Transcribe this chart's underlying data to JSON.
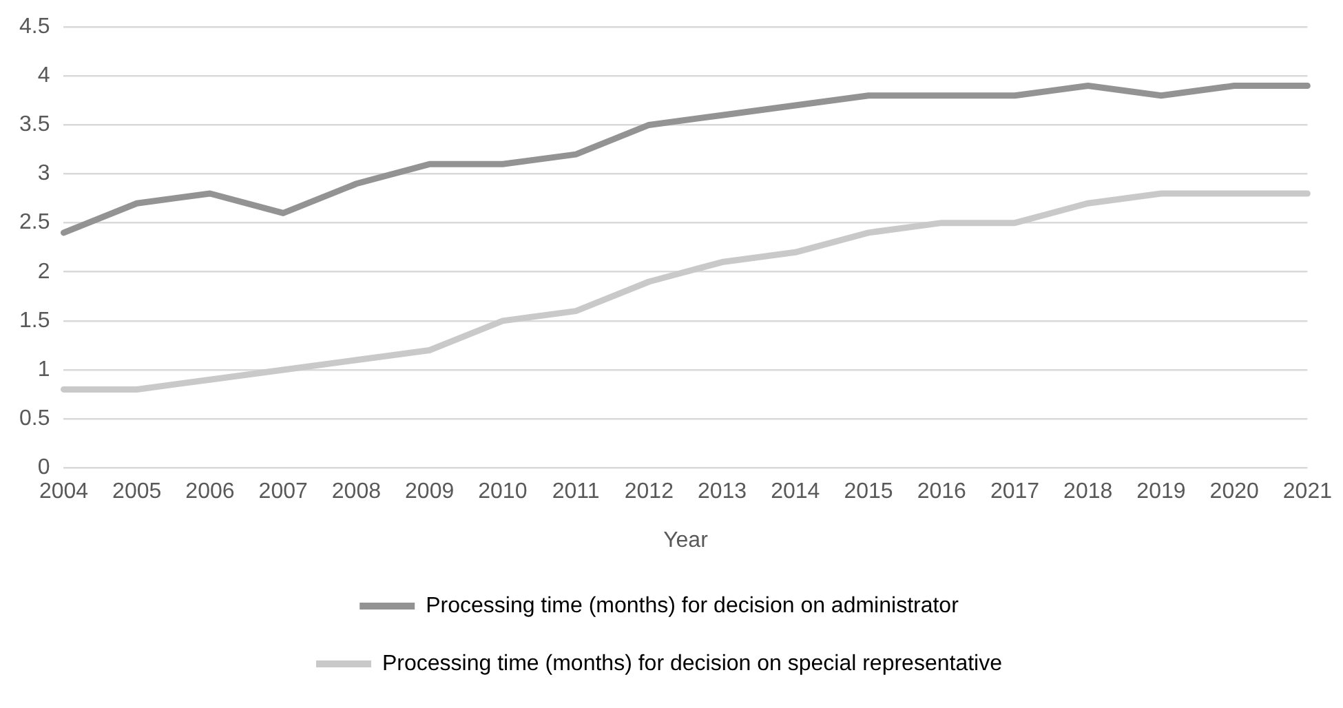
{
  "chart_data": {
    "type": "line",
    "xlabel": "Year",
    "categories": [
      "2004",
      "2005",
      "2006",
      "2007",
      "2008",
      "2009",
      "2010",
      "2011",
      "2012",
      "2013",
      "2014",
      "2015",
      "2016",
      "2017",
      "2018",
      "2019",
      "2020",
      "2021"
    ],
    "series": [
      {
        "name": "Processing time (months) for decision on administrator",
        "color": "#939393",
        "values": [
          2.4,
          2.7,
          2.8,
          2.6,
          2.9,
          3.1,
          3.1,
          3.2,
          3.5,
          3.6,
          3.7,
          3.8,
          3.8,
          3.8,
          3.9,
          3.8,
          3.9,
          3.9
        ]
      },
      {
        "name": "Processing time (months) for decision on special representative",
        "color": "#c9c9c9",
        "values": [
          0.8,
          0.8,
          0.9,
          1.0,
          1.1,
          1.2,
          1.5,
          1.6,
          1.9,
          2.1,
          2.2,
          2.4,
          2.5,
          2.5,
          2.7,
          2.8,
          2.8,
          2.8
        ]
      }
    ],
    "ylim": [
      0,
      4.5
    ],
    "yticks": [
      0,
      0.5,
      1,
      1.5,
      2,
      2.5,
      3,
      3.5,
      4,
      4.5
    ],
    "grid": "y",
    "legend": "bottom",
    "marker": "none",
    "line_style": "solid"
  }
}
